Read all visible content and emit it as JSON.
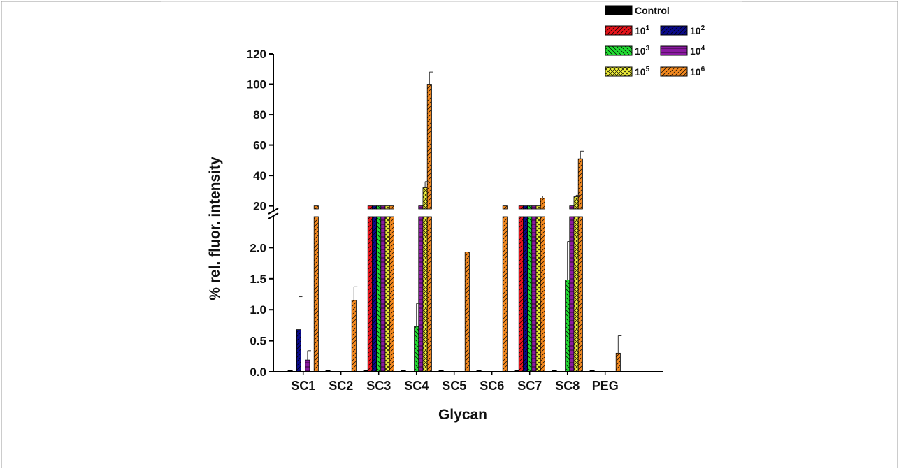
{
  "chart_data": {
    "type": "bar",
    "xlabel": "Glycan",
    "ylabel": "% rel. fluor. intensity",
    "categories": [
      "SC1",
      "SC2",
      "SC3",
      "SC4",
      "SC5",
      "SC6",
      "SC7",
      "SC8",
      "PEG"
    ],
    "y_axis": {
      "broken": true,
      "lower_range": [
        0,
        2.5
      ],
      "upper_range": [
        18,
        120
      ],
      "lower_ticks": [
        "0.0",
        "0.5",
        "1.0",
        "1.5",
        "2.0"
      ],
      "upper_ticks": [
        "20",
        "40",
        "60",
        "80",
        "100",
        "120"
      ]
    },
    "legend_position": "top-right",
    "series": [
      {
        "name": "Control",
        "base": "10",
        "exp": "",
        "color": "#000000",
        "pattern": "solid",
        "values": [
          0.02,
          0.02,
          0.02,
          0.02,
          0.02,
          0.02,
          0.02,
          0.02,
          0.02
        ]
      },
      {
        "name": "10^1",
        "base": "10",
        "exp": "1",
        "color": "#e8141b",
        "pattern": "diag",
        "values": [
          0,
          0,
          20,
          0,
          0,
          0,
          20,
          0,
          0
        ]
      },
      {
        "name": "10^2",
        "base": "10",
        "exp": "2",
        "color": "#0a0a8c",
        "pattern": "diag",
        "values": [
          0.68,
          0,
          20,
          0,
          0,
          0,
          20,
          0,
          0
        ],
        "errors": [
          0.53,
          null,
          null,
          null,
          null,
          null,
          null,
          null,
          null
        ]
      },
      {
        "name": "10^3",
        "base": "10",
        "exp": "3",
        "color": "#22dd33",
        "pattern": "diag2",
        "values": [
          0,
          0,
          20,
          0.73,
          0,
          0,
          20,
          1.48,
          0
        ],
        "errors": [
          null,
          null,
          null,
          0.37,
          null,
          null,
          null,
          0.62,
          null
        ]
      },
      {
        "name": "10^4",
        "base": "10",
        "exp": "4",
        "color": "#8a1aa0",
        "pattern": "horiz",
        "values": [
          0.19,
          0,
          20,
          20,
          0,
          0,
          20,
          20,
          0
        ],
        "errors": [
          0.15,
          null,
          null,
          null,
          null,
          null,
          null,
          null,
          null
        ]
      },
      {
        "name": "10^5",
        "base": "10",
        "exp": "5",
        "color": "#f4f43c",
        "pattern": "cross",
        "values": [
          0,
          0,
          20,
          32,
          0,
          0,
          20,
          26,
          0
        ],
        "errors": [
          null,
          null,
          null,
          4,
          null,
          null,
          null,
          1,
          null
        ]
      },
      {
        "name": "10^6",
        "base": "10",
        "exp": "6",
        "color": "#f48a20",
        "pattern": "diag",
        "values": [
          20,
          1.15,
          20,
          100,
          1.93,
          20,
          25,
          51,
          0.3
        ],
        "errors": [
          null,
          0.22,
          null,
          8,
          null,
          null,
          1.5,
          5,
          0.28
        ]
      }
    ]
  }
}
